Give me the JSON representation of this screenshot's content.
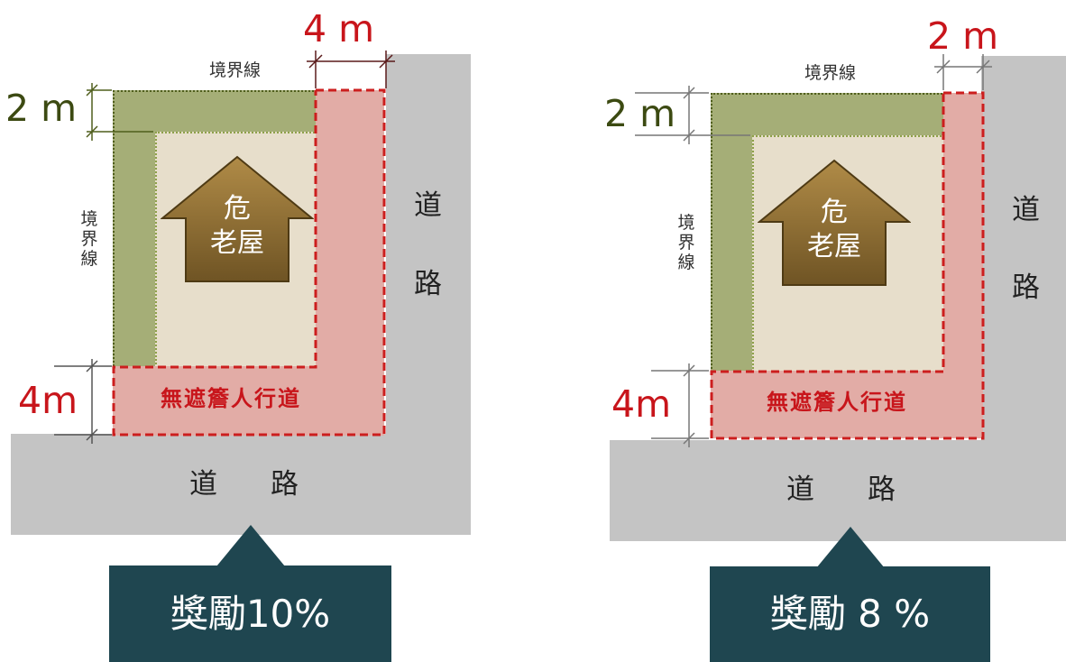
{
  "panels": [
    {
      "road_bottom": [
        "道",
        "路"
      ],
      "road_right": [
        "道",
        "路"
      ],
      "boundary_top": "境界線",
      "boundary_side": [
        "境",
        "界",
        "線"
      ],
      "house": [
        "危",
        "老屋"
      ],
      "walkway": "無遮簷人行道",
      "dim_top": "4 m",
      "dim_setback_green": "2 m",
      "dim_setback_red": "4m",
      "badge": "獎勵10%"
    },
    {
      "road_bottom": [
        "道",
        "路"
      ],
      "road_right": [
        "道",
        "路"
      ],
      "boundary_top": "境界線",
      "boundary_side": [
        "境",
        "界",
        "線"
      ],
      "house": [
        "危",
        "老屋"
      ],
      "walkway": "無遮簷人行道",
      "dim_top": "2 m",
      "dim_setback_green": "2 m",
      "dim_setback_red": "4m",
      "badge": "獎勵 8 %"
    }
  ],
  "colors": {
    "road": "#c4c4c4",
    "green_setback": "#a5ae77",
    "red_setback": "#e2aca6",
    "lot": "#e7decb",
    "house": "#8a6b2f",
    "badge": "#1f4650",
    "red_text": "#c8151b",
    "green_text": "#3c4a12"
  }
}
